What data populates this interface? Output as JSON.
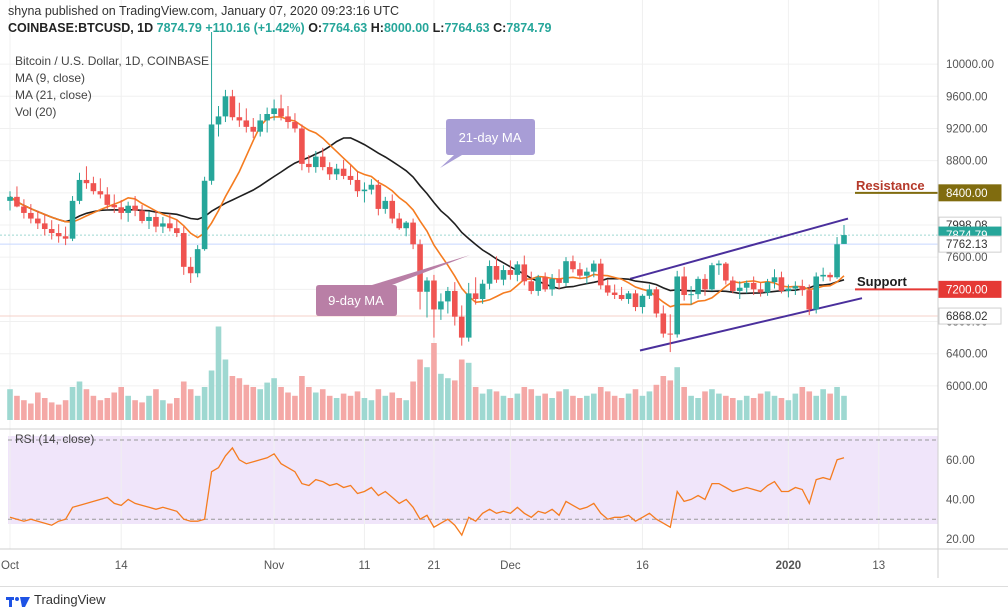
{
  "header": {
    "publisher_line": "shyna published on TradingView.com, January 07, 2020 09:23:16 UTC",
    "symbol": "COINBASE:BTCUSD, 1D",
    "last": "7874.79",
    "change": "+110.16 (+1.42%)",
    "o_label": "O:",
    "o_value": "7764.63",
    "h_label": "H:",
    "h_value": "8000.00",
    "l_label": "L:",
    "l_value": "7764.63",
    "c_label": "C:",
    "c_value": "7874.79"
  },
  "legend": {
    "title": "Bitcoin / U.S. Dollar, 1D, COINBASE",
    "ma9": "MA (9, close)",
    "ma21": "MA (21, close)",
    "vol": "Vol (20)",
    "rsi": "RSI (14, close)"
  },
  "footer": {
    "brand": "TradingView"
  },
  "colors": {
    "up": "#26a69a",
    "down": "#ef5350",
    "ma9": "#f57c20",
    "ma21": "#1f1f1f",
    "channel": "#4a2f9c",
    "rsi_line": "#f57c20",
    "rsi_bg": "#f0e5fa",
    "callout": "#a89dd6",
    "callout2": "#b97fa6"
  },
  "chart_data": {
    "type": "candlestick",
    "title": "Bitcoin / U.S. Dollar, 1D, COINBASE",
    "y_axis": {
      "range": [
        5700,
        10300
      ],
      "ticks": [
        10000,
        9600,
        9200,
        8800,
        8400,
        8000,
        7600,
        7200,
        6800,
        6400,
        6000
      ]
    },
    "x_axis": {
      "tick_labels": [
        "Oct",
        "14",
        "Nov",
        "11",
        "21",
        "Dec",
        "16",
        "2020",
        "13"
      ]
    },
    "price_labels": [
      {
        "value": 8400,
        "text": "8400.00",
        "color": "#806c0f"
      },
      {
        "value": 7998.08,
        "text": "7998.08",
        "color": "#ffffff"
      },
      {
        "value": 7874.79,
        "text": "7874.79",
        "color": "#26a69a"
      },
      {
        "value": 7762.13,
        "text": "7762.13",
        "color": "#ffffff"
      },
      {
        "value": 7200,
        "text": "7200.00",
        "color": "#e53935"
      },
      {
        "value": 6868.02,
        "text": "6868.02",
        "color": "#ffffff"
      }
    ],
    "annotations": [
      {
        "text": "Resistance",
        "level": 8400
      },
      {
        "text": "Support",
        "level": 7200
      },
      {
        "text": "21-day MA"
      },
      {
        "text": "9-day MA"
      }
    ],
    "candles": [
      [
        8300,
        8420,
        8180,
        8350
      ],
      [
        8350,
        8480,
        8220,
        8230
      ],
      [
        8230,
        8320,
        8080,
        8150
      ],
      [
        8150,
        8260,
        8020,
        8080
      ],
      [
        8080,
        8180,
        7950,
        8020
      ],
      [
        8020,
        8130,
        7870,
        7950
      ],
      [
        7950,
        8060,
        7820,
        7900
      ],
      [
        7900,
        8010,
        7780,
        7860
      ],
      [
        7860,
        7980,
        7750,
        7830
      ],
      [
        7830,
        8360,
        7800,
        8300
      ],
      [
        8300,
        8650,
        8260,
        8560
      ],
      [
        8560,
        8730,
        8450,
        8520
      ],
      [
        8520,
        8600,
        8380,
        8420
      ],
      [
        8420,
        8580,
        8330,
        8380
      ],
      [
        8380,
        8470,
        8200,
        8250
      ],
      [
        8250,
        8380,
        8150,
        8220
      ],
      [
        8220,
        8310,
        8070,
        8150
      ],
      [
        8150,
        8290,
        8040,
        8240
      ],
      [
        8240,
        8360,
        8110,
        8180
      ],
      [
        8180,
        8250,
        8020,
        8050
      ],
      [
        8050,
        8170,
        7950,
        8100
      ],
      [
        8100,
        8180,
        7910,
        7980
      ],
      [
        7980,
        8100,
        7900,
        8020
      ],
      [
        8020,
        8140,
        7920,
        7960
      ],
      [
        7960,
        8070,
        7850,
        7900
      ],
      [
        7900,
        7980,
        7380,
        7480
      ],
      [
        7480,
        7600,
        7280,
        7400
      ],
      [
        7400,
        7750,
        7350,
        7700
      ],
      [
        7700,
        8600,
        7680,
        8550
      ],
      [
        8550,
        10400,
        8500,
        9250
      ],
      [
        9250,
        9480,
        9100,
        9350
      ],
      [
        9350,
        9680,
        9280,
        9600
      ],
      [
        9600,
        9680,
        9300,
        9340
      ],
      [
        9340,
        9520,
        9220,
        9300
      ],
      [
        9300,
        9450,
        9150,
        9220
      ],
      [
        9220,
        9330,
        9080,
        9160
      ],
      [
        9160,
        9380,
        9100,
        9300
      ],
      [
        9300,
        9460,
        9150,
        9380
      ],
      [
        9380,
        9560,
        9300,
        9450
      ],
      [
        9450,
        9620,
        9300,
        9350
      ],
      [
        9350,
        9480,
        9200,
        9280
      ],
      [
        9280,
        9390,
        9150,
        9200
      ],
      [
        9200,
        9250,
        8680,
        8760
      ],
      [
        8760,
        8870,
        8650,
        8720
      ],
      [
        8720,
        8920,
        8650,
        8850
      ],
      [
        8850,
        8960,
        8680,
        8720
      ],
      [
        8720,
        8780,
        8560,
        8630
      ],
      [
        8630,
        8760,
        8560,
        8700
      ],
      [
        8700,
        8810,
        8570,
        8610
      ],
      [
        8610,
        8740,
        8500,
        8560
      ],
      [
        8560,
        8670,
        8350,
        8420
      ],
      [
        8420,
        8530,
        8280,
        8440
      ],
      [
        8440,
        8570,
        8380,
        8500
      ],
      [
        8500,
        8560,
        8120,
        8200
      ],
      [
        8200,
        8350,
        8140,
        8300
      ],
      [
        8300,
        8380,
        8020,
        8080
      ],
      [
        8080,
        8150,
        7940,
        7960
      ],
      [
        7960,
        8050,
        7860,
        8030
      ],
      [
        8030,
        8080,
        7700,
        7760
      ],
      [
        7760,
        7820,
        6950,
        7170
      ],
      [
        7170,
        7350,
        6850,
        7310
      ],
      [
        7310,
        7380,
        6600,
        6950
      ],
      [
        6950,
        7150,
        6820,
        7050
      ],
      [
        7050,
        7230,
        6900,
        7180
      ],
      [
        7180,
        7290,
        6750,
        6860
      ],
      [
        6860,
        7000,
        6500,
        6600
      ],
      [
        6600,
        7280,
        6550,
        7150
      ],
      [
        7150,
        7350,
        7010,
        7080
      ],
      [
        7080,
        7320,
        7020,
        7270
      ],
      [
        7270,
        7560,
        7200,
        7490
      ],
      [
        7490,
        7610,
        7280,
        7320
      ],
      [
        7320,
        7500,
        7250,
        7440
      ],
      [
        7440,
        7560,
        7320,
        7380
      ],
      [
        7380,
        7550,
        7300,
        7510
      ],
      [
        7510,
        7620,
        7250,
        7300
      ],
      [
        7300,
        7420,
        7140,
        7180
      ],
      [
        7180,
        7380,
        7120,
        7350
      ],
      [
        7350,
        7410,
        7170,
        7200
      ],
      [
        7200,
        7390,
        7120,
        7330
      ],
      [
        7330,
        7450,
        7200,
        7280
      ],
      [
        7280,
        7600,
        7240,
        7550
      ],
      [
        7550,
        7620,
        7410,
        7450
      ],
      [
        7450,
        7530,
        7330,
        7370
      ],
      [
        7370,
        7470,
        7270,
        7420
      ],
      [
        7420,
        7560,
        7350,
        7520
      ],
      [
        7520,
        7580,
        7200,
        7250
      ],
      [
        7250,
        7320,
        7120,
        7160
      ],
      [
        7160,
        7260,
        7080,
        7130
      ],
      [
        7130,
        7230,
        7060,
        7080
      ],
      [
        7080,
        7180,
        7020,
        7150
      ],
      [
        7150,
        7190,
        6930,
        6980
      ],
      [
        6980,
        7140,
        6900,
        7120
      ],
      [
        7120,
        7260,
        7080,
        7200
      ],
      [
        7200,
        7230,
        6850,
        6900
      ],
      [
        6900,
        7000,
        6600,
        6650
      ],
      [
        6650,
        6890,
        6420,
        6640
      ],
      [
        6640,
        7430,
        6600,
        7360
      ],
      [
        7360,
        7480,
        7060,
        7130
      ],
      [
        7130,
        7240,
        7010,
        7140
      ],
      [
        7140,
        7360,
        7080,
        7330
      ],
      [
        7330,
        7390,
        7120,
        7200
      ],
      [
        7200,
        7530,
        7180,
        7500
      ],
      [
        7500,
        7560,
        7380,
        7520
      ],
      [
        7520,
        7540,
        7260,
        7310
      ],
      [
        7310,
        7360,
        7150,
        7180
      ],
      [
        7180,
        7300,
        7080,
        7220
      ],
      [
        7220,
        7310,
        7150,
        7280
      ],
      [
        7280,
        7360,
        7130,
        7200
      ],
      [
        7200,
        7280,
        7110,
        7160
      ],
      [
        7160,
        7330,
        7120,
        7290
      ],
      [
        7290,
        7450,
        7210,
        7350
      ],
      [
        7350,
        7420,
        7150,
        7180
      ],
      [
        7180,
        7260,
        7100,
        7210
      ],
      [
        7210,
        7300,
        7130,
        7240
      ],
      [
        7240,
        7320,
        7120,
        7190
      ],
      [
        7190,
        7260,
        6880,
        6950
      ],
      [
        6950,
        7410,
        6900,
        7360
      ],
      [
        7360,
        7470,
        7300,
        7380
      ],
      [
        7380,
        7410,
        7300,
        7350
      ],
      [
        7350,
        7850,
        7330,
        7760
      ],
      [
        7764.63,
        8000,
        7764.63,
        7874.79
      ]
    ],
    "volume": [
      28,
      22,
      18,
      15,
      25,
      20,
      16,
      14,
      18,
      30,
      35,
      28,
      22,
      18,
      20,
      25,
      30,
      22,
      18,
      16,
      22,
      28,
      18,
      15,
      20,
      35,
      28,
      22,
      30,
      45,
      85,
      55,
      40,
      38,
      32,
      30,
      28,
      34,
      38,
      30,
      25,
      22,
      40,
      30,
      25,
      28,
      22,
      20,
      24,
      22,
      26,
      20,
      18,
      28,
      22,
      25,
      20,
      18,
      35,
      55,
      48,
      70,
      42,
      38,
      36,
      55,
      52,
      30,
      24,
      28,
      26,
      22,
      20,
      24,
      30,
      28,
      22,
      24,
      20,
      26,
      28,
      22,
      20,
      22,
      24,
      30,
      26,
      22,
      20,
      24,
      28,
      22,
      26,
      32,
      40,
      36,
      48,
      30,
      22,
      20,
      26,
      28,
      24,
      22,
      20,
      18,
      22,
      20,
      24,
      26,
      22,
      20,
      18,
      24,
      30,
      26,
      22,
      28,
      24,
      30,
      22
    ],
    "rsi": {
      "range": [
        17,
        72
      ],
      "ticks": [
        60,
        40,
        20
      ],
      "values": [
        31,
        30,
        29,
        30,
        29,
        28,
        27,
        29,
        30,
        36,
        37,
        38,
        39,
        40,
        41,
        38,
        37,
        40,
        38,
        37,
        36,
        35,
        36,
        35,
        34,
        30,
        29,
        29,
        30,
        54,
        56,
        62,
        66,
        60,
        58,
        59,
        60,
        61,
        63,
        58,
        56,
        54,
        48,
        47,
        50,
        49,
        47,
        48,
        46,
        47,
        43,
        44,
        46,
        42,
        44,
        41,
        38,
        40,
        36,
        30,
        32,
        26,
        28,
        30,
        27,
        22,
        31,
        29,
        33,
        35,
        33,
        34,
        33,
        36,
        33,
        31,
        34,
        33,
        35,
        32,
        39,
        37,
        35,
        36,
        38,
        33,
        30,
        31,
        31,
        32,
        29,
        31,
        33,
        30,
        28,
        26,
        44,
        39,
        40,
        42,
        40,
        48,
        48,
        46,
        44,
        45,
        46,
        45,
        44,
        47,
        49,
        44,
        44,
        46,
        45,
        38,
        50,
        51,
        50,
        60,
        61
      ]
    }
  }
}
